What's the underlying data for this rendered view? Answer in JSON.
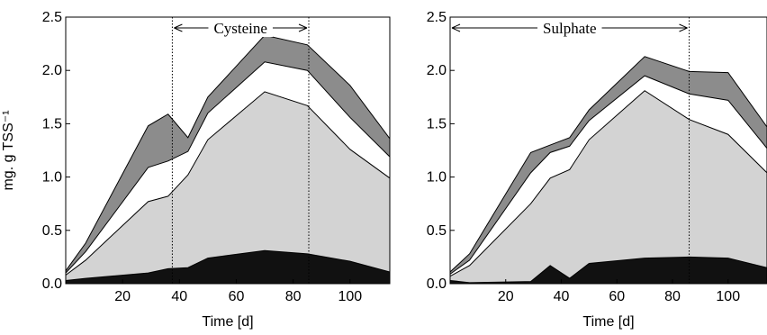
{
  "chart_data": [
    {
      "type": "area",
      "stacking": "cumulative",
      "annotation": "Cysteine",
      "xlabel": "Time [d]",
      "ylabel": "mg. g TSS⁻¹",
      "xlim": [
        0,
        114
      ],
      "ylim": [
        0,
        2.5
      ],
      "xticks": [
        "20",
        "40",
        "60",
        "80",
        "100"
      ],
      "yticks": [
        "0.0",
        "0.5",
        "1.0",
        "1.5",
        "2.0",
        "2.5"
      ],
      "annotation_range": [
        37.5,
        85.5
      ],
      "grid": false,
      "x": [
        0,
        7,
        29,
        36,
        43,
        50,
        70,
        85,
        100,
        114
      ],
      "boundaries": [
        [
          0.03,
          0.05,
          0.1,
          0.14,
          0.15,
          0.24,
          0.31,
          0.28,
          0.21,
          0.11
        ],
        [
          0.08,
          0.22,
          0.77,
          0.82,
          1.02,
          1.35,
          1.8,
          1.67,
          1.26,
          0.99
        ],
        [
          0.1,
          0.3,
          1.09,
          1.15,
          1.24,
          1.6,
          2.08,
          2.0,
          1.56,
          1.19
        ],
        [
          0.12,
          0.38,
          1.48,
          1.59,
          1.37,
          1.75,
          2.33,
          2.24,
          1.86,
          1.36
        ]
      ],
      "colors": [
        "#111111",
        "#d3d3d3",
        "#ffffff",
        "#8c8c8c"
      ]
    },
    {
      "type": "area",
      "stacking": "cumulative",
      "annotation": "Sulphate",
      "xlabel": "Time [d]",
      "ylabel": "",
      "xlim": [
        0,
        114
      ],
      "ylim": [
        0,
        2.5
      ],
      "xticks": [
        "20",
        "40",
        "60",
        "80",
        "100"
      ],
      "yticks": [
        "0.0",
        "0.5",
        "1.0",
        "1.5",
        "2.0",
        "2.5"
      ],
      "annotation_range": [
        0,
        86
      ],
      "grid": false,
      "x": [
        0,
        7,
        29,
        36,
        43,
        50,
        70,
        86,
        100,
        114
      ],
      "boundaries": [
        [
          0.03,
          0.01,
          0.02,
          0.17,
          0.05,
          0.19,
          0.24,
          0.25,
          0.24,
          0.15
        ],
        [
          0.07,
          0.17,
          0.75,
          0.99,
          1.07,
          1.35,
          1.81,
          1.54,
          1.4,
          1.04
        ],
        [
          0.09,
          0.22,
          1.04,
          1.23,
          1.29,
          1.53,
          1.95,
          1.78,
          1.72,
          1.27
        ],
        [
          0.11,
          0.28,
          1.23,
          1.3,
          1.37,
          1.63,
          2.13,
          1.99,
          1.98,
          1.47
        ]
      ],
      "colors": [
        "#111111",
        "#d3d3d3",
        "#ffffff",
        "#8c8c8c"
      ]
    }
  ]
}
